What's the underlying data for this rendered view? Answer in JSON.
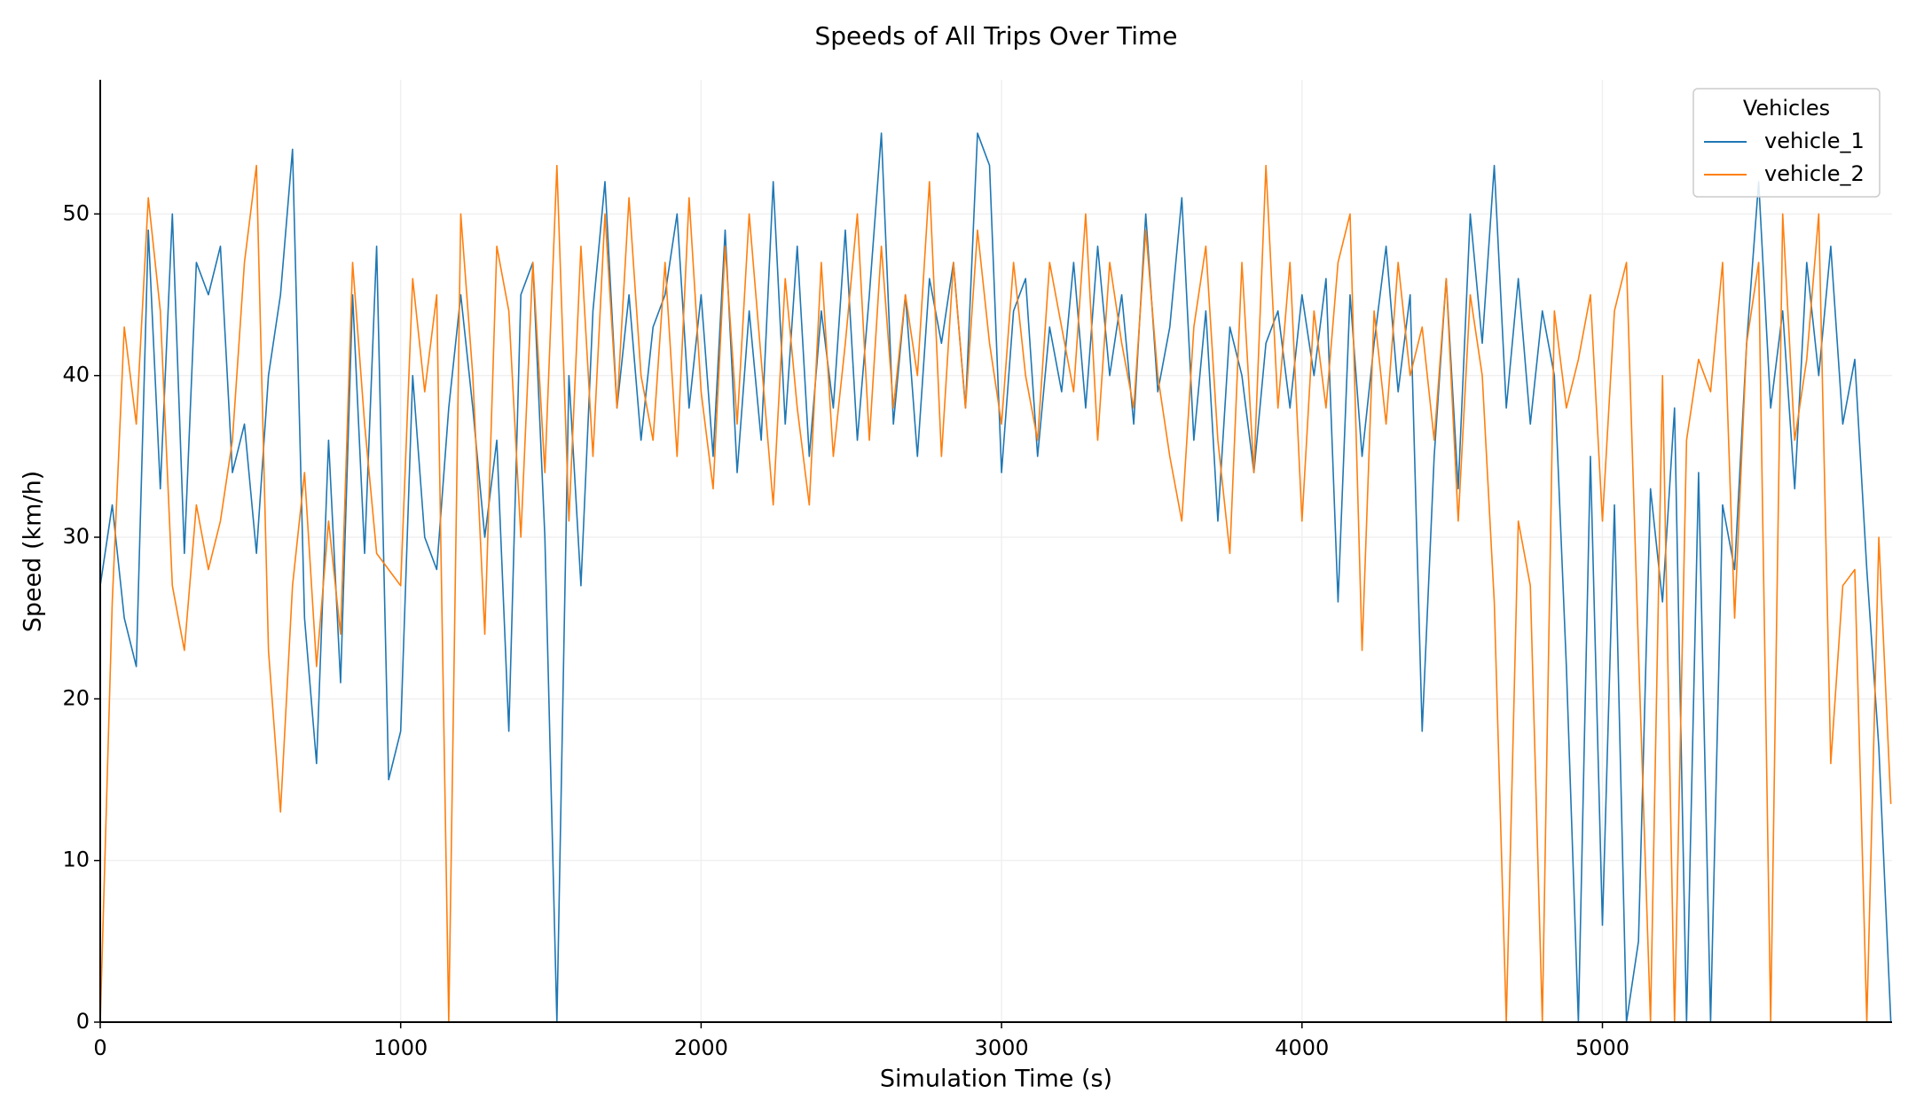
{
  "chart_data": {
    "type": "line",
    "title": "Speeds of All Trips Over Time",
    "x_label": "Simulation Time (s)",
    "y_label": "Speed (km/h)",
    "legend_title": "Vehicles",
    "legend": "upper right",
    "grid": true,
    "xlim": [
      0,
      5964
    ],
    "ylim": [
      0,
      58.3
    ],
    "xticks": [
      0,
      1000,
      2000,
      3000,
      4000,
      5000
    ],
    "yticks": [
      0,
      10,
      20,
      30,
      40,
      50
    ],
    "x": [
      0,
      40,
      80,
      120,
      160,
      200,
      240,
      280,
      320,
      360,
      400,
      440,
      480,
      520,
      560,
      600,
      640,
      680,
      720,
      760,
      800,
      840,
      880,
      920,
      960,
      1000,
      1040,
      1080,
      1120,
      1160,
      1200,
      1240,
      1280,
      1320,
      1360,
      1400,
      1440,
      1480,
      1520,
      1560,
      1600,
      1640,
      1680,
      1720,
      1760,
      1800,
      1840,
      1880,
      1920,
      1960,
      2000,
      2040,
      2080,
      2120,
      2160,
      2200,
      2240,
      2280,
      2320,
      2360,
      2400,
      2440,
      2480,
      2520,
      2560,
      2600,
      2640,
      2680,
      2720,
      2760,
      2800,
      2840,
      2880,
      2920,
      2960,
      3000,
      3040,
      3080,
      3120,
      3160,
      3200,
      3240,
      3280,
      3320,
      3360,
      3400,
      3440,
      3480,
      3520,
      3560,
      3600,
      3640,
      3680,
      3720,
      3760,
      3800,
      3840,
      3880,
      3920,
      3960,
      4000,
      4040,
      4080,
      4120,
      4160,
      4200,
      4240,
      4280,
      4320,
      4360,
      4400,
      4440,
      4480,
      4520,
      4560,
      4600,
      4640,
      4680,
      4720,
      4760,
      4800,
      4840,
      4880,
      4920,
      4960,
      5000,
      5040,
      5080,
      5120,
      5160,
      5200,
      5240,
      5280,
      5320,
      5360,
      5400,
      5440,
      5480,
      5520,
      5560,
      5600,
      5640,
      5680,
      5720,
      5760,
      5800,
      5840,
      5880,
      5920,
      5960
    ],
    "series": [
      {
        "name": "vehicle_1",
        "color": "#1f77b4",
        "values": [
          27,
          32,
          25,
          22,
          49,
          33,
          50,
          29,
          47,
          45,
          48,
          34,
          37,
          29,
          40,
          45,
          54,
          25,
          16,
          36,
          21,
          45,
          29,
          48,
          15,
          18,
          40,
          30,
          28,
          38,
          45,
          38,
          30,
          36,
          18,
          45,
          47,
          30,
          0,
          40,
          27,
          44,
          52,
          38,
          45,
          36,
          43,
          45,
          50,
          38,
          45,
          35,
          49,
          34,
          44,
          36,
          52,
          37,
          48,
          35,
          44,
          38,
          49,
          36,
          45,
          55,
          37,
          45,
          35,
          46,
          42,
          47,
          38,
          55,
          53,
          34,
          44,
          46,
          35,
          43,
          39,
          47,
          38,
          48,
          40,
          45,
          37,
          50,
          39,
          43,
          51,
          36,
          44,
          31,
          43,
          40,
          34,
          42,
          44,
          38,
          45,
          40,
          46,
          26,
          45,
          35,
          42,
          48,
          39,
          45,
          18,
          35,
          46,
          33,
          50,
          42,
          53,
          38,
          46,
          37,
          44,
          40,
          22,
          0,
          35,
          6,
          32,
          0,
          5,
          33,
          26,
          38,
          0,
          34,
          0,
          32,
          28,
          42,
          52,
          38,
          44,
          33,
          47,
          40,
          48,
          37,
          41,
          28,
          17,
          0
        ]
      },
      {
        "name": "vehicle_2",
        "color": "#ff7f0e",
        "values": [
          0,
          26,
          43,
          37,
          51,
          44,
          27,
          23,
          32,
          28,
          31,
          36,
          47,
          53,
          23,
          13,
          27,
          34,
          22,
          31,
          24,
          47,
          37,
          29,
          28,
          27,
          46,
          39,
          45,
          0,
          50,
          40,
          24,
          48,
          44,
          30,
          47,
          34,
          53,
          31,
          48,
          35,
          50,
          38,
          51,
          40,
          36,
          47,
          35,
          51,
          39,
          33,
          48,
          37,
          50,
          41,
          32,
          46,
          38,
          32,
          47,
          35,
          42,
          50,
          36,
          48,
          38,
          45,
          40,
          52,
          35,
          47,
          38,
          49,
          42,
          37,
          47,
          40,
          36,
          47,
          43,
          39,
          50,
          36,
          47,
          42,
          38,
          49,
          40,
          35,
          31,
          43,
          48,
          36,
          29,
          47,
          34,
          53,
          38,
          47,
          31,
          44,
          38,
          47,
          50,
          23,
          44,
          37,
          47,
          40,
          43,
          36,
          46,
          31,
          45,
          40,
          26,
          0,
          31,
          27,
          0,
          44,
          38,
          41,
          45,
          31,
          44,
          47,
          23,
          0,
          40,
          0,
          36,
          41,
          39,
          47,
          25,
          42,
          47,
          0,
          50,
          36,
          41,
          50,
          16,
          27,
          28,
          0,
          30,
          13.5
        ]
      }
    ]
  }
}
